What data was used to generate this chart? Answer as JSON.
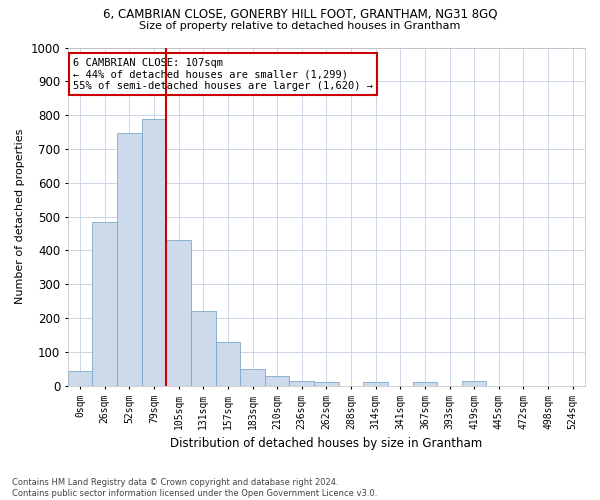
{
  "title": "6, CAMBRIAN CLOSE, GONERBY HILL FOOT, GRANTHAM, NG31 8GQ",
  "subtitle": "Size of property relative to detached houses in Grantham",
  "xlabel": "Distribution of detached houses by size in Grantham",
  "ylabel": "Number of detached properties",
  "bar_labels": [
    "0sqm",
    "26sqm",
    "52sqm",
    "79sqm",
    "105sqm",
    "131sqm",
    "157sqm",
    "183sqm",
    "210sqm",
    "236sqm",
    "262sqm",
    "288sqm",
    "314sqm",
    "341sqm",
    "367sqm",
    "393sqm",
    "419sqm",
    "445sqm",
    "472sqm",
    "498sqm",
    "524sqm"
  ],
  "bar_values": [
    45,
    485,
    748,
    790,
    430,
    222,
    128,
    50,
    28,
    13,
    12,
    0,
    10,
    0,
    12,
    0,
    13,
    0,
    0,
    0,
    0
  ],
  "bar_color": "#ccdaeb",
  "bar_edge_color": "#7baac8",
  "property_line_index": 4,
  "property_line_color": "#cc0000",
  "annotation_text": "6 CAMBRIAN CLOSE: 107sqm\n← 44% of detached houses are smaller (1,299)\n55% of semi-detached houses are larger (1,620) →",
  "annotation_box_color": "#ffffff",
  "annotation_box_edge": "#cc0000",
  "ylim": [
    0,
    1000
  ],
  "yticks": [
    0,
    100,
    200,
    300,
    400,
    500,
    600,
    700,
    800,
    900,
    1000
  ],
  "footnote": "Contains HM Land Registry data © Crown copyright and database right 2024.\nContains public sector information licensed under the Open Government Licence v3.0.",
  "bg_color": "#ffffff",
  "grid_color": "#ccd6e8"
}
